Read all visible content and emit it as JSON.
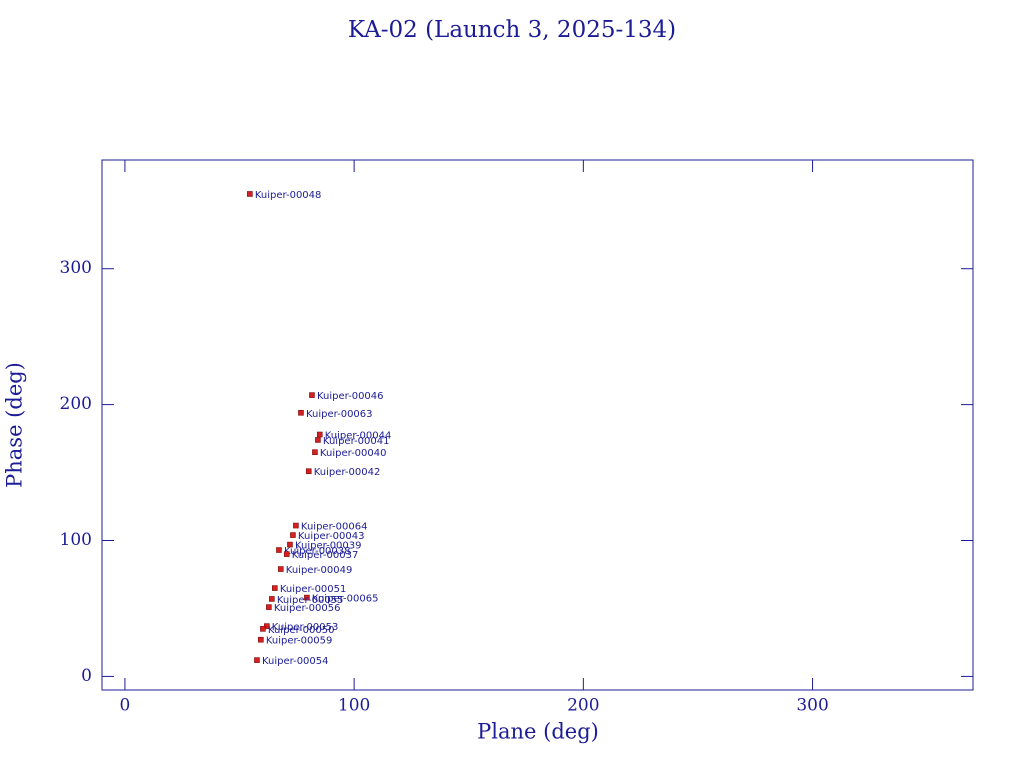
{
  "chart_data": {
    "type": "scatter",
    "title": "KA-02 (Launch 3, 2025-134)",
    "x_label": "Plane (deg)",
    "y_label": "Phase (deg)",
    "xlim": [
      -10,
      370
    ],
    "xticks": [
      0,
      100,
      200,
      300
    ],
    "ylim": [
      -10,
      380
    ],
    "yticks": [
      0,
      100,
      200,
      300
    ],
    "x": [
      54.5,
      81.6,
      76.8,
      85,
      84.2,
      82.9,
      80.2,
      74.6,
      73.3,
      72,
      67.2,
      70.6,
      68,
      65.4,
      79.4,
      64.1,
      62.8,
      61.9,
      60.2,
      59.3,
      57.6
    ],
    "series": [
      {
        "color": "#d42020",
        "values": [
          355,
          207,
          194,
          178,
          174,
          165,
          151,
          111,
          104,
          97,
          93,
          90,
          79,
          65,
          58,
          57,
          51,
          37,
          35,
          27,
          12
        ]
      }
    ],
    "point_labels": [
      "Kuiper-00048",
      "Kuiper-00046",
      "Kuiper-00063",
      "Kuiper-00044",
      "Kuiper-00041",
      "Kuiper-00040",
      "Kuiper-00042",
      "Kuiper-00064",
      "Kuiper-00043",
      "Kuiper-00039",
      "Kuiper-00038",
      "Kuiper-00037",
      "Kuiper-00049",
      "Kuiper-00051",
      "Kuiper-00065",
      "Kuiper-00055",
      "Kuiper-00056",
      "Kuiper-00053",
      "Kuiper-00050",
      "Kuiper-00059",
      "Kuiper-00054"
    ]
  }
}
